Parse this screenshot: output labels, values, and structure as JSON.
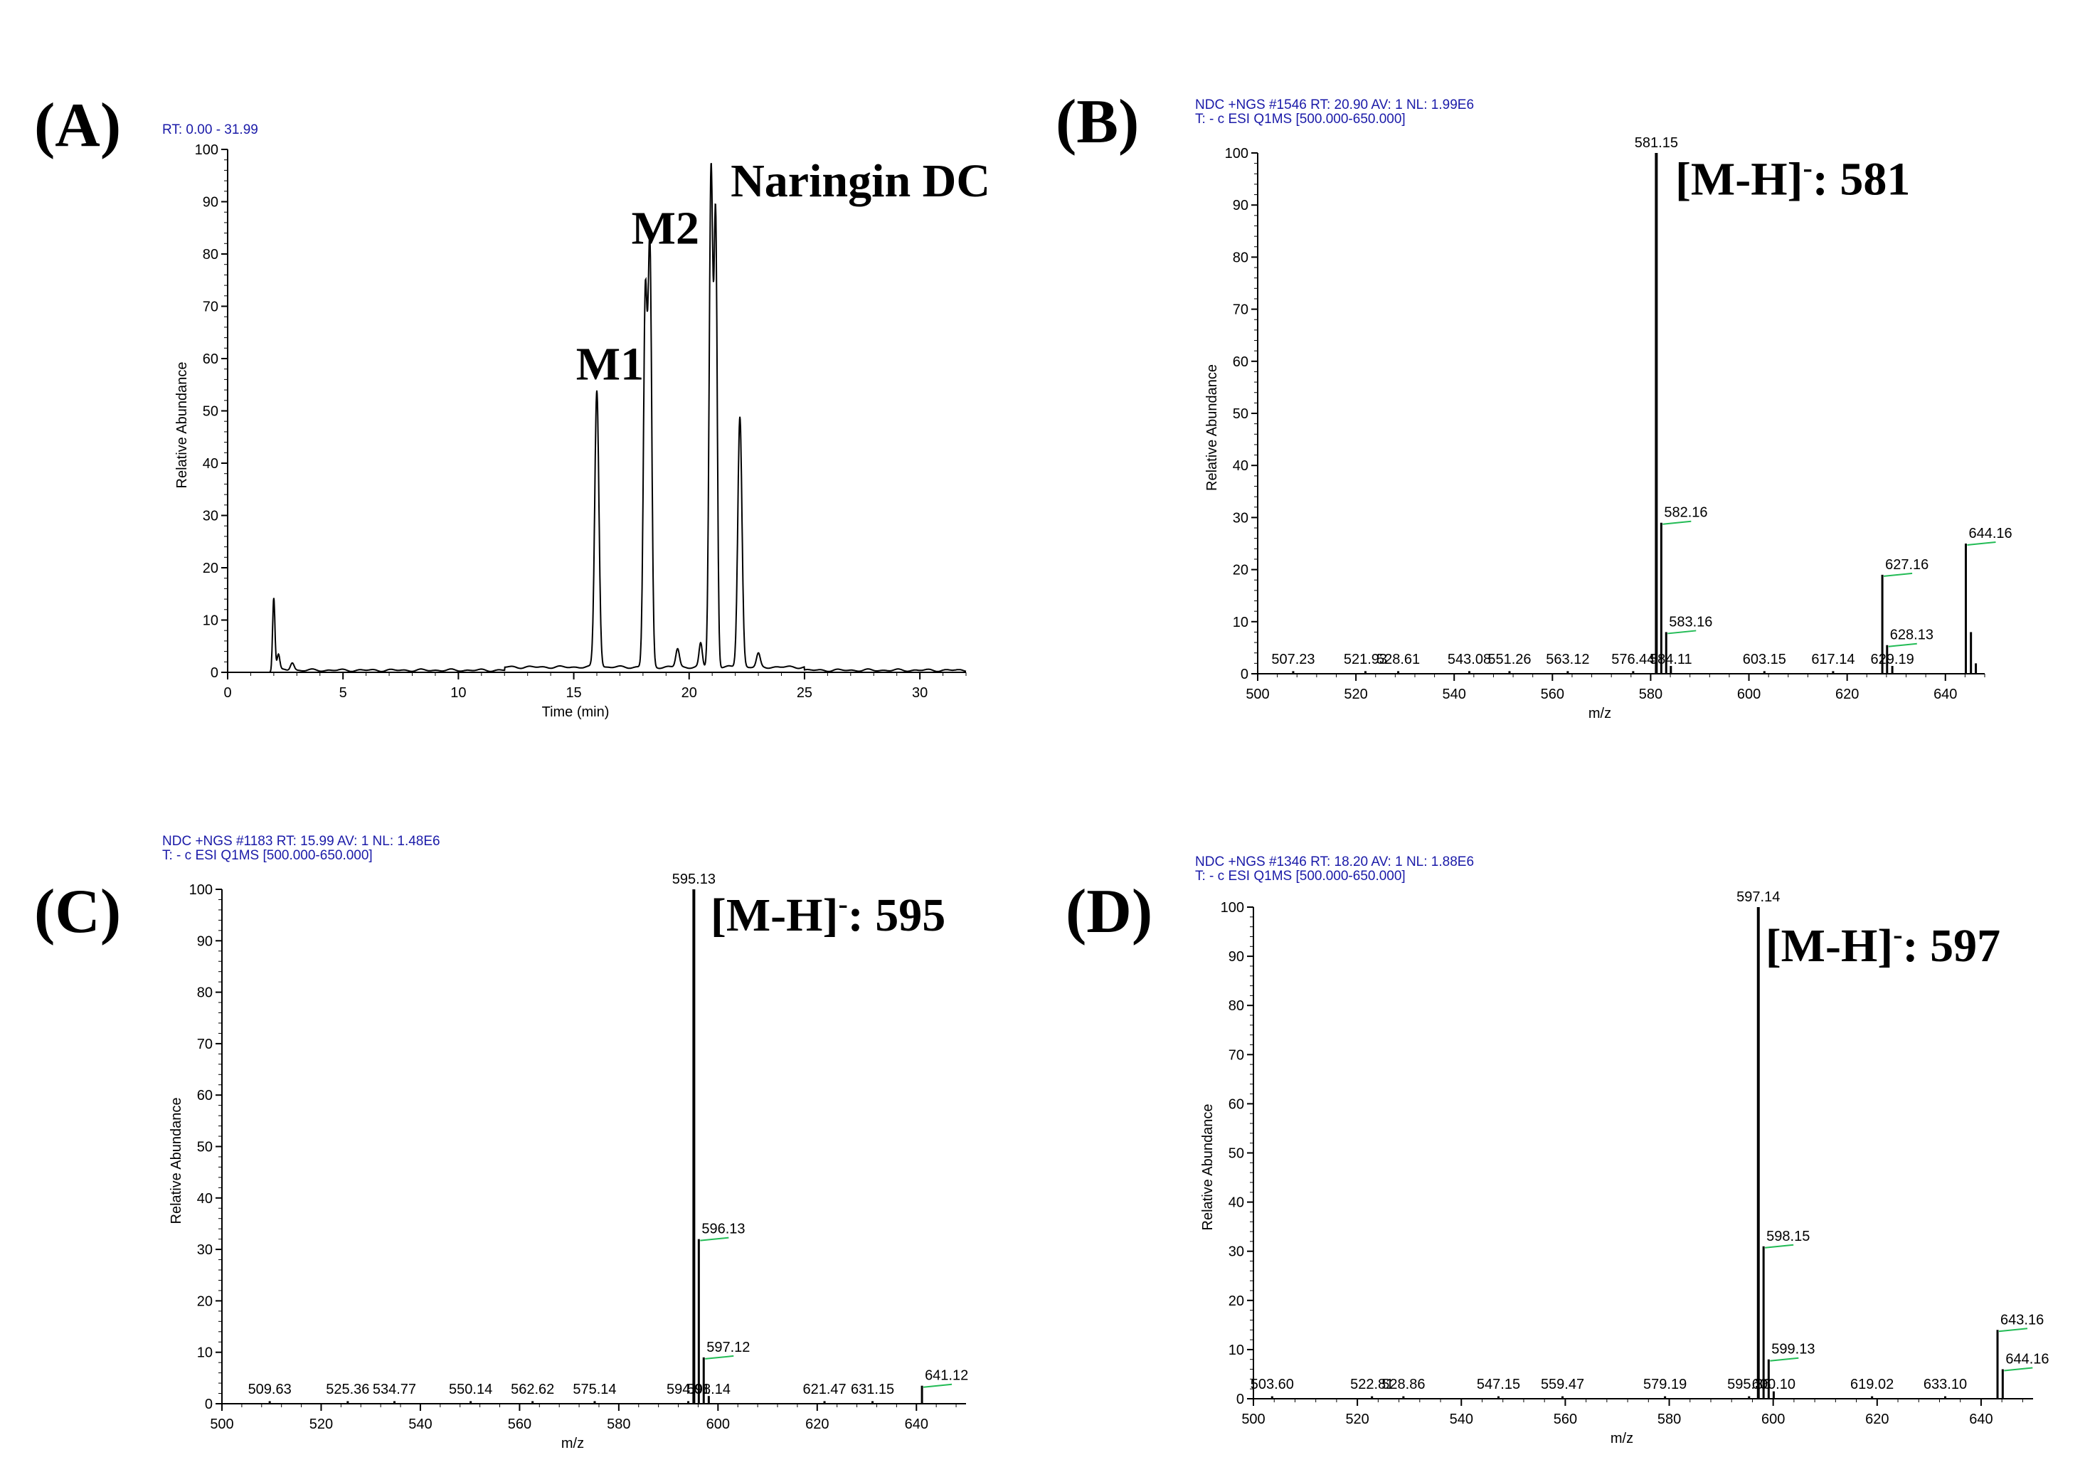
{
  "chart_data": [
    {
      "panel": "(A)",
      "type": "line",
      "header": "RT: 0.00 - 31.99",
      "xlabel": "Time (min)",
      "ylabel": "Relative Abundance",
      "xlim": [
        0,
        32
      ],
      "ylim": [
        0,
        100
      ],
      "xticks": [
        0,
        5,
        10,
        15,
        20,
        25,
        30
      ],
      "yticks": [
        0,
        10,
        20,
        30,
        40,
        50,
        60,
        70,
        80,
        90,
        100
      ],
      "peaks": [
        {
          "x": 2.0,
          "y": 14,
          "w": 0.05
        },
        {
          "x": 2.2,
          "y": 3,
          "w": 0.06
        },
        {
          "x": 2.8,
          "y": 1.5,
          "w": 0.08
        },
        {
          "x": 16.0,
          "y": 53,
          "w": 0.09
        },
        {
          "x": 18.1,
          "y": 70,
          "w": 0.08
        },
        {
          "x": 18.3,
          "y": 79,
          "w": 0.08
        },
        {
          "x": 19.5,
          "y": 3.5,
          "w": 0.08
        },
        {
          "x": 20.5,
          "y": 4.5,
          "w": 0.07
        },
        {
          "x": 20.95,
          "y": 95,
          "w": 0.08
        },
        {
          "x": 21.15,
          "y": 84,
          "w": 0.07
        },
        {
          "x": 22.2,
          "y": 48,
          "w": 0.09
        },
        {
          "x": 23.0,
          "y": 2.5,
          "w": 0.08
        }
      ],
      "annotations": [
        {
          "text": "M1",
          "x": 15.1,
          "y": 56
        },
        {
          "text": "M2",
          "x": 17.5,
          "y": 82
        },
        {
          "text": "Naringin DC",
          "x": 21.8,
          "y": 91
        }
      ]
    },
    {
      "panel": "(B)",
      "type": "bar",
      "header": [
        "NDC +NGS #1546  RT: 20.90  AV: 1  NL: 1.99E6",
        "T: - c ESI Q1MS [500.000-650.000]"
      ],
      "xlabel": "m/z",
      "ylabel": "Relative Abundance",
      "xlim": [
        500,
        648
      ],
      "ylim": [
        0,
        100
      ],
      "xticks": [
        500,
        520,
        540,
        560,
        580,
        600,
        620,
        640
      ],
      "yticks": [
        0,
        10,
        20,
        30,
        40,
        50,
        60,
        70,
        80,
        90,
        100
      ],
      "ion_label": "[M-H]",
      "ion_sup": "-",
      "ion_value": ": 581",
      "ion_pos": {
        "x": 585,
        "y": 92
      },
      "peaks": [
        {
          "mz": 507.23,
          "y": 0.5,
          "label": "507.23"
        },
        {
          "mz": 521.93,
          "y": 0.5,
          "label": "521.93"
        },
        {
          "mz": 528.61,
          "y": 0.5,
          "label": "528.61"
        },
        {
          "mz": 543.08,
          "y": 0.5,
          "label": "543.08"
        },
        {
          "mz": 551.26,
          "y": 0.5,
          "label": "551.26"
        },
        {
          "mz": 563.12,
          "y": 0.5,
          "label": "563.12"
        },
        {
          "mz": 576.44,
          "y": 0.5,
          "label": "576.44"
        },
        {
          "mz": 581.15,
          "y": 100,
          "label": "581.15"
        },
        {
          "mz": 582.16,
          "y": 29,
          "label": "582.16"
        },
        {
          "mz": 583.16,
          "y": 8,
          "label": "583.16"
        },
        {
          "mz": 584.11,
          "y": 1.5,
          "label": "584.11"
        },
        {
          "mz": 603.15,
          "y": 0.5,
          "label": "603.15"
        },
        {
          "mz": 617.14,
          "y": 0.5,
          "label": "617.14"
        },
        {
          "mz": 627.16,
          "y": 19,
          "label": "627.16"
        },
        {
          "mz": 628.13,
          "y": 5.5,
          "label": "628.13"
        },
        {
          "mz": 629.19,
          "y": 1.5,
          "label": "629.19"
        },
        {
          "mz": 644.16,
          "y": 25,
          "label": "644.16"
        },
        {
          "mz": 645.2,
          "y": 8,
          "label": ""
        },
        {
          "mz": 646.2,
          "y": 2,
          "label": ""
        }
      ]
    },
    {
      "panel": "(C)",
      "type": "bar",
      "header": [
        "NDC +NGS #1183  RT: 15.99  AV: 1  NL: 1.48E6",
        "T: - c ESI Q1MS [500.000-650.000]"
      ],
      "xlabel": "m/z",
      "ylabel": "Relative Abundance",
      "xlim": [
        500,
        650
      ],
      "ylim": [
        0,
        100
      ],
      "xticks": [
        500,
        520,
        540,
        560,
        580,
        600,
        620,
        640
      ],
      "yticks": [
        0,
        10,
        20,
        30,
        40,
        50,
        60,
        70,
        80,
        90,
        100
      ],
      "ion_label": "[M-H]",
      "ion_sup": "-",
      "ion_value": ": 595",
      "ion_pos": {
        "x": 598.5,
        "y": 92
      },
      "peaks": [
        {
          "mz": 509.63,
          "y": 0.5,
          "label": "509.63"
        },
        {
          "mz": 525.36,
          "y": 0.5,
          "label": "525.36"
        },
        {
          "mz": 534.77,
          "y": 0.5,
          "label": "534.77"
        },
        {
          "mz": 550.14,
          "y": 0.5,
          "label": "550.14"
        },
        {
          "mz": 562.62,
          "y": 0.5,
          "label": "562.62"
        },
        {
          "mz": 575.14,
          "y": 0.5,
          "label": "575.14"
        },
        {
          "mz": 594.01,
          "y": 0.5,
          "label": "594.01"
        },
        {
          "mz": 595.13,
          "y": 100,
          "label": "595.13"
        },
        {
          "mz": 596.13,
          "y": 32,
          "label": "596.13"
        },
        {
          "mz": 597.12,
          "y": 9,
          "label": "597.12"
        },
        {
          "mz": 598.14,
          "y": 1.5,
          "label": "598.14"
        },
        {
          "mz": 621.47,
          "y": 0.5,
          "label": "621.47"
        },
        {
          "mz": 631.15,
          "y": 0.5,
          "label": "631.15"
        },
        {
          "mz": 641.12,
          "y": 3.5,
          "label": "641.12"
        }
      ]
    },
    {
      "panel": "(D)",
      "type": "bar",
      "header": [
        "NDC +NGS #1346  RT: 18.20  AV: 1  NL: 1.88E6",
        "T: - c ESI Q1MS [500.000-650.000]"
      ],
      "xlabel": "m/z",
      "ylabel": "Relative Abundance",
      "xlim": [
        500,
        650
      ],
      "ylim": [
        0,
        100
      ],
      "xticks": [
        500,
        520,
        540,
        560,
        580,
        600,
        620,
        640
      ],
      "yticks": [
        0,
        10,
        20,
        30,
        40,
        50,
        60,
        70,
        80,
        90,
        100
      ],
      "ion_label": "[M-H]",
      "ion_sup": "-",
      "ion_value": ": 597",
      "ion_pos": {
        "x": 598.5,
        "y": 89
      },
      "peaks": [
        {
          "mz": 503.6,
          "y": 0.5,
          "label": "503.60"
        },
        {
          "mz": 522.81,
          "y": 0.5,
          "label": "522.81"
        },
        {
          "mz": 528.86,
          "y": 0.5,
          "label": "528.86"
        },
        {
          "mz": 547.15,
          "y": 0.5,
          "label": "547.15"
        },
        {
          "mz": 559.47,
          "y": 0.5,
          "label": "559.47"
        },
        {
          "mz": 579.19,
          "y": 0.5,
          "label": "579.19"
        },
        {
          "mz": 595.36,
          "y": 0.5,
          "label": "595.36"
        },
        {
          "mz": 597.14,
          "y": 100,
          "label": "597.14"
        },
        {
          "mz": 598.15,
          "y": 31,
          "label": "598.15"
        },
        {
          "mz": 599.13,
          "y": 8,
          "label": "599.13"
        },
        {
          "mz": 600.1,
          "y": 1.5,
          "label": "600.10"
        },
        {
          "mz": 619.02,
          "y": 0.5,
          "label": "619.02"
        },
        {
          "mz": 633.1,
          "y": 0.5,
          "label": "633.10"
        },
        {
          "mz": 643.16,
          "y": 14,
          "label": "643.16"
        },
        {
          "mz": 644.16,
          "y": 6,
          "label": "644.16"
        }
      ]
    }
  ],
  "colors": {
    "axis": "#000000",
    "header": "#1a1aa8",
    "marker": "#22bb55",
    "trace": "#000000"
  }
}
